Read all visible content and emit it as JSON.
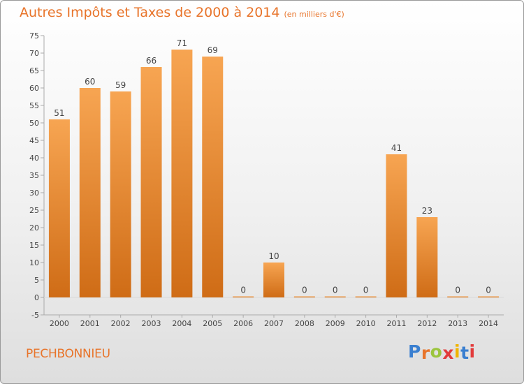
{
  "header": {
    "title": "Autres Impôts et Taxes de 2000 à 2014",
    "unit": "(en milliers d'€)"
  },
  "footer": {
    "commune": "PECHBONNIEU",
    "logo_letters": [
      "P",
      "r",
      "o",
      "x",
      "i",
      "t",
      "i"
    ],
    "logo_colors": [
      "#3a7fd0",
      "#e8742a",
      "#9bc53d",
      "#e23b3b",
      "#f0b400",
      "#3a7fd0",
      "#e23b3b"
    ]
  },
  "colors": {
    "bar_top": "#f7a552",
    "bar_bottom": "#cf6c16",
    "text": "#e8742a"
  },
  "chart_data": {
    "type": "bar",
    "title": "Autres Impôts et Taxes de 2000 à 2014",
    "subtitle": "(en milliers d'€)",
    "xlabel": "",
    "ylabel": "",
    "categories": [
      "2000",
      "2001",
      "2002",
      "2003",
      "2004",
      "2005",
      "2006",
      "2007",
      "2008",
      "2009",
      "2010",
      "2011",
      "2012",
      "2013",
      "2014"
    ],
    "values": [
      51,
      60,
      59,
      66,
      71,
      69,
      0,
      10,
      0,
      0,
      0,
      41,
      23,
      0,
      0
    ],
    "ylim": [
      -5,
      75
    ],
    "yticks": [
      -5,
      0,
      5,
      10,
      15,
      20,
      25,
      30,
      35,
      40,
      45,
      50,
      55,
      60,
      65,
      70,
      75
    ],
    "grid": false,
    "data_labels": true
  }
}
